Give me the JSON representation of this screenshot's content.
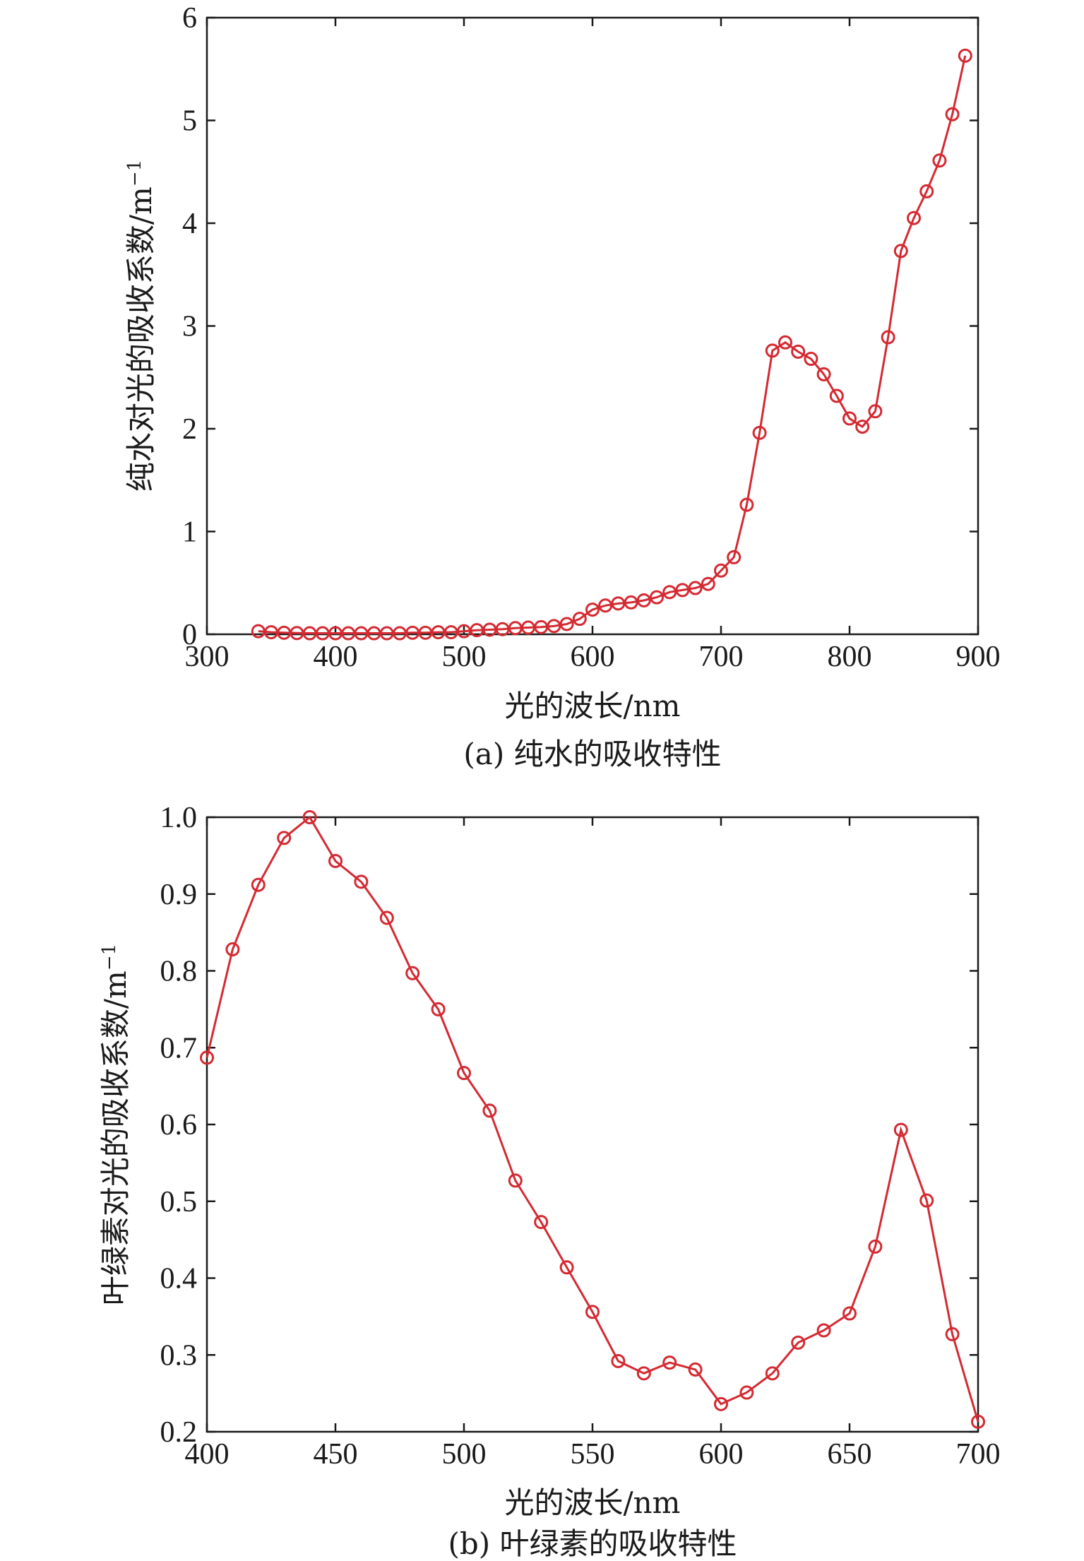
{
  "chart_data": [
    {
      "type": "line",
      "caption": "(a) 纯水的吸收特性",
      "xlabel": "光的波长/nm",
      "ylabel": "纯水对光的吸收系数/m",
      "ylabel_sup": "−1",
      "xlim": [
        300,
        900
      ],
      "ylim": [
        0,
        6
      ],
      "xticks": [
        "300",
        "400",
        "500",
        "600",
        "700",
        "800",
        "900"
      ],
      "yticks": [
        "0",
        "1",
        "2",
        "3",
        "4",
        "5",
        "6"
      ],
      "color": "#d42a32",
      "x": [
        340,
        350,
        360,
        370,
        380,
        390,
        400,
        410,
        420,
        430,
        440,
        450,
        460,
        470,
        480,
        490,
        500,
        510,
        520,
        530,
        540,
        550,
        560,
        570,
        580,
        590,
        600,
        610,
        620,
        630,
        640,
        650,
        660,
        670,
        680,
        690,
        700,
        710,
        720,
        730,
        740,
        750,
        760,
        770,
        780,
        790,
        800,
        810,
        820,
        830,
        840,
        850,
        860,
        870,
        880,
        890
      ],
      "y": [
        0.03,
        0.02,
        0.015,
        0.012,
        0.01,
        0.01,
        0.01,
        0.01,
        0.01,
        0.01,
        0.01,
        0.01,
        0.015,
        0.015,
        0.02,
        0.02,
        0.03,
        0.04,
        0.045,
        0.05,
        0.06,
        0.065,
        0.07,
        0.08,
        0.1,
        0.15,
        0.24,
        0.28,
        0.3,
        0.31,
        0.33,
        0.36,
        0.41,
        0.43,
        0.45,
        0.49,
        0.62,
        0.75,
        1.26,
        1.96,
        2.76,
        2.84,
        2.75,
        2.68,
        2.53,
        2.32,
        2.1,
        2.02,
        2.17,
        2.89,
        3.73,
        4.05,
        4.31,
        4.61,
        5.06,
        5.63
      ]
    },
    {
      "type": "line",
      "caption": "(b) 叶绿素的吸收特性",
      "xlabel": "光的波长/nm",
      "ylabel": "叶绿素对光的吸收系数/m",
      "ylabel_sup": "−1",
      "xlim": [
        400,
        700
      ],
      "ylim": [
        0.2,
        1.0
      ],
      "xticks": [
        "400",
        "450",
        "500",
        "550",
        "600",
        "650",
        "700"
      ],
      "yticks": [
        "0.2",
        "0.3",
        "0.4",
        "0.5",
        "0.6",
        "0.7",
        "0.8",
        "0.9",
        "1.0"
      ],
      "color": "#d42a32",
      "x": [
        400,
        410,
        420,
        430,
        440,
        450,
        460,
        470,
        480,
        490,
        500,
        510,
        520,
        530,
        540,
        550,
        560,
        570,
        580,
        590,
        600,
        610,
        620,
        630,
        640,
        650,
        660,
        670,
        680,
        690,
        700
      ],
      "y": [
        0.687,
        0.828,
        0.912,
        0.973,
        1.0,
        0.943,
        0.916,
        0.869,
        0.797,
        0.75,
        0.667,
        0.618,
        0.527,
        0.473,
        0.414,
        0.356,
        0.292,
        0.276,
        0.29,
        0.281,
        0.236,
        0.251,
        0.276,
        0.316,
        0.332,
        0.354,
        0.441,
        0.593,
        0.501,
        0.327,
        0.213
      ]
    }
  ]
}
